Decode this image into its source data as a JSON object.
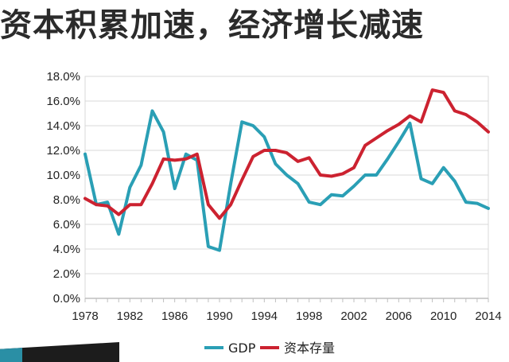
{
  "header": {
    "title": "资本积累加速，经济增长减速"
  },
  "colors": {
    "gdp": "#2a9fb5",
    "capital": "#cc2230",
    "grid": "#d9d9d9",
    "axis": "#bfbfbf",
    "text": "#222222"
  },
  "chart_data": {
    "type": "line",
    "title": "资本积累加速，经济增长减速",
    "xlabel": "",
    "ylabel": "",
    "xlim": [
      1978,
      2014
    ],
    "ylim": [
      0,
      18
    ],
    "y_tick_labels": [
      "0.0%",
      "2.0%",
      "4.0%",
      "6.0%",
      "8.0%",
      "10.0%",
      "12.0%",
      "14.0%",
      "16.0%",
      "18.0%"
    ],
    "x_tick_labels": [
      "1978",
      "1982",
      "1986",
      "1990",
      "1994",
      "1998",
      "2002",
      "2006",
      "2010",
      "2014"
    ],
    "legend_position": "bottom",
    "grid": true,
    "x": [
      1978,
      1979,
      1980,
      1981,
      1982,
      1983,
      1984,
      1985,
      1986,
      1987,
      1988,
      1989,
      1990,
      1991,
      1992,
      1993,
      1994,
      1995,
      1996,
      1997,
      1998,
      1999,
      2000,
      2001,
      2002,
      2003,
      2004,
      2005,
      2006,
      2007,
      2008,
      2009,
      2010,
      2011,
      2012,
      2013,
      2014
    ],
    "series": [
      {
        "name": "GDP",
        "color": "#2a9fb5",
        "values": [
          11.7,
          7.6,
          7.8,
          5.2,
          9.0,
          10.8,
          15.2,
          13.5,
          8.9,
          11.7,
          11.2,
          4.2,
          3.9,
          9.3,
          14.3,
          14.0,
          13.1,
          10.9,
          10.0,
          9.3,
          7.8,
          7.6,
          8.4,
          8.3,
          9.1,
          10.0,
          10.0,
          11.3,
          12.7,
          14.2,
          9.7,
          9.3,
          10.6,
          9.5,
          7.8,
          7.7,
          7.3
        ]
      },
      {
        "name": "资本存量",
        "color": "#cc2230",
        "values": [
          8.1,
          7.6,
          7.5,
          6.8,
          7.6,
          7.6,
          9.3,
          11.3,
          11.2,
          11.3,
          11.7,
          7.6,
          6.5,
          7.6,
          9.6,
          11.5,
          12.0,
          12.0,
          11.8,
          11.1,
          11.4,
          10.0,
          9.9,
          10.1,
          10.6,
          12.4,
          13.0,
          13.6,
          14.1,
          14.8,
          14.3,
          16.9,
          16.7,
          15.2,
          14.9,
          14.3,
          13.5
        ]
      }
    ]
  }
}
